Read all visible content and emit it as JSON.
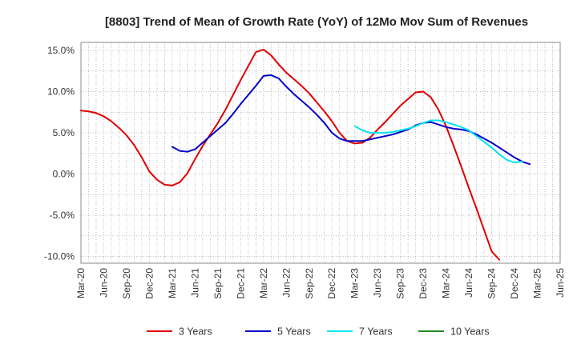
{
  "chart_data": {
    "type": "line",
    "title": "[8803]  Trend of Mean of Growth Rate (YoY) of 12Mo Mov Sum of Revenues",
    "xlabel": "",
    "ylabel": "",
    "ylim": [
      -11,
      16
    ],
    "y_ticks": [
      15,
      10,
      5,
      0,
      -5,
      -10
    ],
    "y_tick_labels": [
      "15.0%",
      "10.0%",
      "5.0%",
      "0.0%",
      "-5.0%",
      "-10.0%"
    ],
    "x_tick_labels": [
      "Mar-20",
      "Jun-20",
      "Sep-20",
      "Dec-20",
      "Mar-21",
      "Jun-21",
      "Sep-21",
      "Dec-21",
      "Mar-22",
      "Jun-22",
      "Sep-22",
      "Dec-22",
      "Mar-23",
      "Jun-23",
      "Sep-23",
      "Dec-23",
      "Mar-24",
      "Jun-24",
      "Sep-24",
      "Dec-24",
      "Mar-25",
      "Jun-25"
    ],
    "grid": true,
    "legend_position": "bottom",
    "series": [
      {
        "name": "3 Years",
        "color": "#dd0000",
        "start_index": 0,
        "values": [
          7.7,
          7.6,
          7.4,
          7.0,
          6.4,
          5.6,
          4.7,
          3.5,
          2.0,
          0.3,
          -0.7,
          -1.3,
          -1.4,
          -1.0,
          0.1,
          1.8,
          3.4,
          4.8,
          6.2,
          7.8,
          9.6,
          11.4,
          13.1,
          14.8,
          15.1,
          14.4,
          13.3,
          12.3,
          11.5,
          10.7,
          9.8,
          8.7,
          7.6,
          6.4,
          5.0,
          4.0,
          3.7,
          3.8,
          4.4,
          5.4,
          6.3,
          7.3,
          8.3,
          9.1,
          9.9,
          10.0,
          9.3,
          7.8,
          5.8,
          3.4,
          0.9,
          -1.7,
          -4.2,
          -6.8,
          -9.4,
          -10.4
        ]
      },
      {
        "name": "5 Years",
        "color": "#0000cc",
        "start_index": 12,
        "values": [
          3.3,
          2.8,
          2.7,
          3.0,
          3.8,
          4.6,
          5.4,
          6.2,
          7.3,
          8.5,
          9.6,
          10.7,
          11.9,
          12.0,
          11.6,
          10.6,
          9.7,
          8.9,
          8.1,
          7.2,
          6.2,
          5.0,
          4.3,
          4.0,
          4.0,
          4.0,
          4.2,
          4.4,
          4.6,
          4.8,
          5.1,
          5.4,
          5.9,
          6.2,
          6.3,
          6.0,
          5.7,
          5.5,
          5.4,
          5.2,
          4.8,
          4.3,
          3.8,
          3.2,
          2.6,
          2.0,
          1.5,
          1.2
        ]
      },
      {
        "name": "7 Years",
        "color": "#00e5ee",
        "start_index": 36,
        "values": [
          5.8,
          5.3,
          5.0,
          5.0,
          5.0,
          5.1,
          5.3,
          5.5,
          5.8,
          6.2,
          6.5,
          6.5,
          6.3,
          6.0,
          5.7,
          5.3,
          4.6,
          3.9,
          3.2,
          2.4,
          1.7,
          1.4,
          1.5
        ]
      },
      {
        "name": "10 Years",
        "color": "#228b22",
        "start_index": 0,
        "values": []
      }
    ]
  }
}
